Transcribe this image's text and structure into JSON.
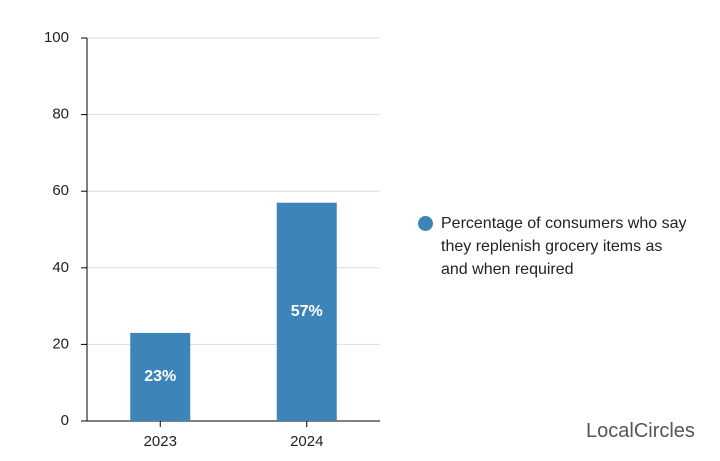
{
  "chart_data": {
    "type": "bar",
    "categories": [
      "2023",
      "2024"
    ],
    "values": [
      23,
      57
    ],
    "value_labels": [
      "23%",
      "57%"
    ],
    "color": "#3d85b8",
    "ylim": [
      0,
      100
    ],
    "yticks": [
      0,
      20,
      40,
      60,
      80,
      100
    ],
    "grid": true,
    "series_name": "Percentage of consumers who say they replenish grocery items as and when required",
    "legend_position": "right"
  },
  "brand": "LocalCircles"
}
